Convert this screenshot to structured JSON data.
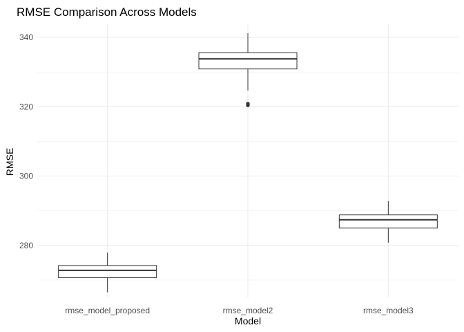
{
  "chart_data": {
    "type": "box",
    "title": "RMSE Comparison Across Models",
    "xlabel": "Model",
    "ylabel": "RMSE",
    "ylim": [
      265,
      344
    ],
    "yticks": [
      280,
      300,
      320,
      340
    ],
    "yticks_minor": [
      270,
      290,
      310,
      330
    ],
    "grid": true,
    "categories": [
      "rmse_model_proposed",
      "rmse_model2",
      "rmse_model3"
    ],
    "boxes": [
      {
        "category": "rmse_model_proposed",
        "whisker_low": 266.5,
        "q1": 270.7,
        "median": 272.8,
        "q3": 274.2,
        "whisker_high": 277.9,
        "outliers": []
      },
      {
        "category": "rmse_model2",
        "whisker_low": 324.7,
        "q1": 330.9,
        "median": 333.8,
        "q3": 335.6,
        "whisker_high": 341.2,
        "outliers": [
          320.4,
          320.7,
          320.9
        ]
      },
      {
        "category": "rmse_model3",
        "whisker_low": 280.8,
        "q1": 285.0,
        "median": 287.4,
        "q3": 288.8,
        "whisker_high": 292.8,
        "outliers": []
      }
    ],
    "colors": {
      "box_line": "#333333",
      "box_fill": "#ffffff",
      "outlier": "#333333",
      "grid": "#ebebeb"
    }
  }
}
